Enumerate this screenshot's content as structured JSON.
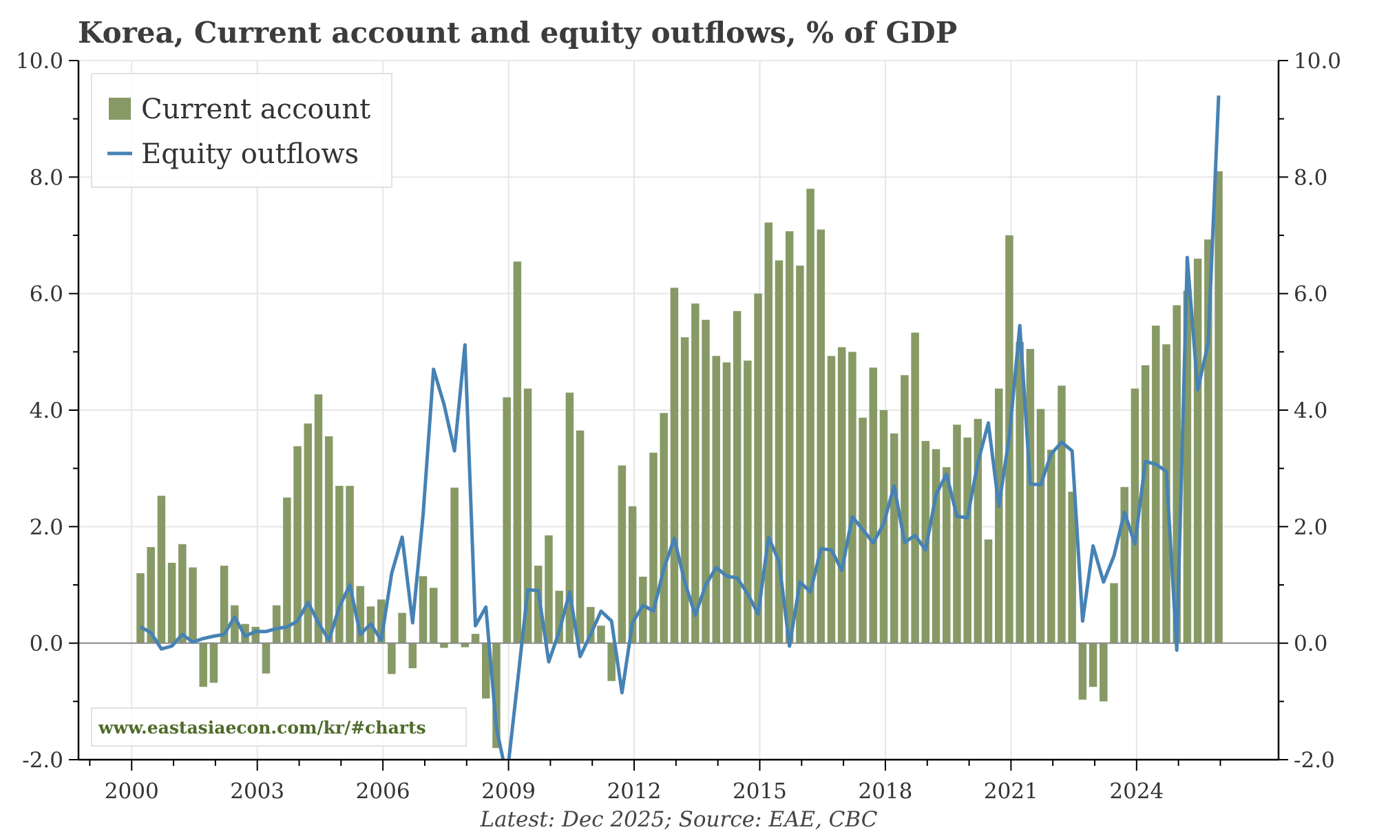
{
  "chart_data": {
    "type": "bar+line",
    "title": "Korea, Current account and equity outflows, % of GDP",
    "footer": "Latest: Dec 2025; Source: EAE, CBC",
    "watermark": "www.eastasiaecon.com/kr/#charts",
    "xlabel": "",
    "ylabel": "",
    "ylim": [
      -2.0,
      10.0
    ],
    "y_ticks": [
      "-2.0",
      "0.0",
      "2.0",
      "4.0",
      "6.0",
      "8.0",
      "10.0"
    ],
    "y_tick_values": [
      -2,
      0,
      2,
      4,
      6,
      8,
      10
    ],
    "x_ticks": [
      "2000",
      "2003",
      "2006",
      "2009",
      "2012",
      "2015",
      "2018",
      "2021",
      "2024"
    ],
    "x_tick_values": [
      2000,
      2003,
      2006,
      2009,
      2012,
      2015,
      2018,
      2021,
      2024
    ],
    "grid": true,
    "legend_position": "top-left",
    "x": [
      "2000Q1",
      "2000Q2",
      "2000Q3",
      "2000Q4",
      "2001Q1",
      "2001Q2",
      "2001Q3",
      "2001Q4",
      "2002Q1",
      "2002Q2",
      "2002Q3",
      "2002Q4",
      "2003Q1",
      "2003Q2",
      "2003Q3",
      "2003Q4",
      "2004Q1",
      "2004Q2",
      "2004Q3",
      "2004Q4",
      "2005Q1",
      "2005Q2",
      "2005Q3",
      "2005Q4",
      "2006Q1",
      "2006Q2",
      "2006Q3",
      "2006Q4",
      "2007Q1",
      "2007Q2",
      "2007Q3",
      "2007Q4",
      "2008Q1",
      "2008Q2",
      "2008Q3",
      "2008Q4",
      "2009Q1",
      "2009Q2",
      "2009Q3",
      "2009Q4",
      "2010Q1",
      "2010Q2",
      "2010Q3",
      "2010Q4",
      "2011Q1",
      "2011Q2",
      "2011Q3",
      "2011Q4",
      "2012Q1",
      "2012Q2",
      "2012Q3",
      "2012Q4",
      "2013Q1",
      "2013Q2",
      "2013Q3",
      "2013Q4",
      "2014Q1",
      "2014Q2",
      "2014Q3",
      "2014Q4",
      "2015Q1",
      "2015Q2",
      "2015Q3",
      "2015Q4",
      "2016Q1",
      "2016Q2",
      "2016Q3",
      "2016Q4",
      "2017Q1",
      "2017Q2",
      "2017Q3",
      "2017Q4",
      "2018Q1",
      "2018Q2",
      "2018Q3",
      "2018Q4",
      "2019Q1",
      "2019Q2",
      "2019Q3",
      "2019Q4",
      "2020Q1",
      "2020Q2",
      "2020Q3",
      "2020Q4",
      "2021Q1",
      "2021Q2",
      "2021Q3",
      "2021Q4",
      "2022Q1",
      "2022Q2",
      "2022Q3",
      "2022Q4",
      "2023Q1",
      "2023Q2",
      "2023Q3",
      "2023Q4",
      "2024Q1",
      "2024Q2",
      "2024Q3",
      "2024Q4",
      "2025Q1",
      "2025Q2",
      "2025Q3",
      "2025Q4"
    ],
    "series": [
      {
        "name": "Current account",
        "type": "bar",
        "color": "#879a66",
        "values": [
          1.2,
          1.65,
          2.53,
          1.38,
          1.7,
          1.3,
          -0.75,
          -0.68,
          1.33,
          0.65,
          0.33,
          0.28,
          -0.52,
          0.65,
          2.5,
          3.38,
          3.77,
          4.27,
          3.55,
          2.7,
          2.7,
          0.98,
          0.63,
          0.75,
          -0.53,
          0.52,
          -0.43,
          1.15,
          0.95,
          -0.08,
          2.67,
          -0.07,
          0.16,
          -0.95,
          -1.8,
          4.22,
          6.55,
          4.37,
          1.33,
          1.85,
          0.9,
          4.3,
          3.65,
          0.62,
          0.3,
          -0.65,
          3.05,
          2.35,
          1.14,
          3.27,
          3.95,
          6.1,
          5.25,
          5.83,
          5.55,
          4.93,
          4.82,
          5.7,
          4.85,
          6.0,
          7.22,
          6.57,
          7.07,
          6.48,
          7.8,
          7.1,
          4.93,
          5.08,
          5.0,
          3.87,
          4.73,
          4.0,
          3.6,
          4.6,
          5.33,
          3.47,
          3.33,
          3.02,
          3.75,
          3.53,
          3.85,
          1.78,
          4.37,
          7.0,
          5.17,
          5.05,
          4.02,
          3.32,
          4.42,
          2.6,
          -0.97,
          -0.75,
          -1.0,
          1.03,
          2.68,
          4.37,
          4.77,
          5.45,
          5.13,
          5.8,
          6.05,
          6.6,
          6.93,
          8.1
        ]
      },
      {
        "name": "Equity outflows",
        "type": "line",
        "color": "#4682b4",
        "values": [
          0.28,
          0.18,
          -0.1,
          -0.05,
          0.15,
          0.02,
          0.08,
          0.12,
          0.15,
          0.45,
          0.12,
          0.2,
          0.2,
          0.25,
          0.28,
          0.38,
          0.7,
          0.35,
          0.05,
          0.62,
          1.0,
          0.15,
          0.33,
          0.05,
          1.2,
          1.82,
          0.35,
          2.2,
          4.7,
          4.1,
          3.3,
          5.12,
          0.3,
          0.62,
          -1.45,
          -2.3,
          -0.7,
          0.92,
          0.9,
          -0.32,
          0.2,
          0.88,
          -0.23,
          0.15,
          0.55,
          0.38,
          -0.85,
          0.35,
          0.65,
          0.55,
          1.28,
          1.8,
          1.05,
          0.48,
          1.0,
          1.3,
          1.15,
          1.12,
          0.85,
          0.5,
          1.82,
          1.4,
          -0.05,
          1.05,
          0.88,
          1.62,
          1.6,
          1.25,
          2.17,
          1.95,
          1.72,
          2.05,
          2.7,
          1.73,
          1.85,
          1.6,
          2.55,
          2.9,
          2.18,
          2.15,
          3.1,
          3.78,
          2.35,
          3.55,
          5.45,
          2.73,
          2.72,
          3.25,
          3.45,
          3.3,
          0.38,
          1.67,
          1.05,
          1.5,
          2.25,
          1.7,
          3.12,
          3.07,
          2.95,
          -0.12,
          6.62,
          4.35,
          5.15,
          9.4
        ]
      }
    ]
  }
}
